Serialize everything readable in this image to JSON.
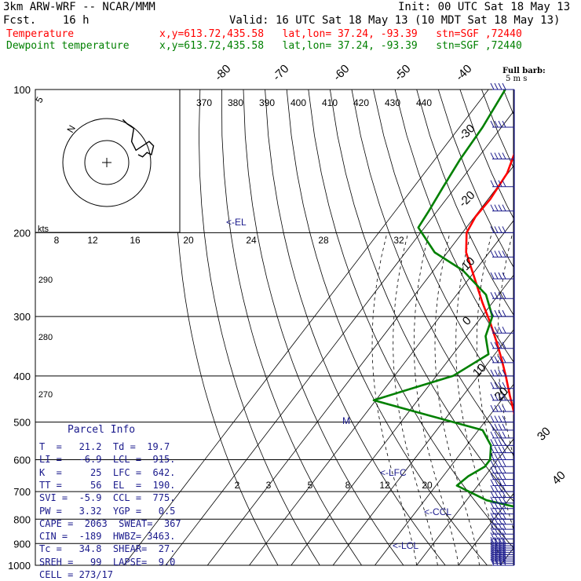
{
  "header": {
    "model": "3km ARW-WRF -- NCAR/MMM",
    "init": "Init: 00 UTC Sat 18 May 13",
    "fcst": "Fcst.    16 h",
    "valid": "Valid: 16 UTC Sat 18 May 13 (10 MDT Sat 18 May 13)",
    "temp_label": "Temperature",
    "temp_loc": "x,y=613.72,435.58   lat,lon= 37.24, -93.39   stn=SGF ,72440",
    "dew_label": "Dewpoint temperature",
    "dew_loc": "x,y=613.72,435.58   lat,lon= 37.24, -93.39   stn=SGF ,72440"
  },
  "wind_note": {
    "line1": "Full barb:",
    "line2": "5 m s"
  },
  "chart_data": {
    "type": "line",
    "diagram": "skew-T log-p",
    "pressure_ticks": [
      100,
      200,
      300,
      400,
      500,
      600,
      700,
      800,
      900,
      1000
    ],
    "pressure_tick_labels": [
      "100",
      "200",
      "300",
      "400",
      "500",
      "600",
      "700",
      "800",
      "900",
      "1000"
    ],
    "temp_ticks": [
      -80,
      -70,
      -60,
      -50,
      -40,
      -30,
      -20,
      -10,
      0,
      10,
      20,
      30,
      40
    ],
    "temp_tick_labels": [
      "-80",
      "-70",
      "-60",
      "-50",
      "-40",
      "-30",
      "-20",
      "-10",
      "0",
      "10",
      "20",
      "30",
      "40"
    ],
    "theta_labels": [
      "370",
      "380",
      "390",
      "400",
      "410",
      "420",
      "430",
      "440"
    ],
    "mixing_ratio_labels": [
      "2",
      "3",
      "5",
      "8",
      "12",
      "20"
    ],
    "other_labels": [
      "290",
      "280",
      "270"
    ],
    "hodograph": {
      "rings": [
        8,
        16
      ],
      "speed_ticks": [
        "8",
        "12",
        "16",
        "20",
        "24",
        "28",
        "32"
      ],
      "units": "kts",
      "ring_labels": [
        "5",
        "N"
      ]
    },
    "levels": {
      "el": "<-EL",
      "lfc": "<-LFC",
      "ccl": "<-CCL",
      "lcl": "<-LCL",
      "mark": "M"
    },
    "series": [
      {
        "name": "Temperature",
        "color": "#ff0000",
        "points": [
          [
            955,
            21.2
          ],
          [
            943,
            20.0
          ],
          [
            930,
            19.0
          ],
          [
            905,
            18.3
          ],
          [
            880,
            16.8
          ],
          [
            850,
            14.6
          ],
          [
            820,
            11.2
          ],
          [
            790,
            9.2
          ],
          [
            760,
            7.3
          ],
          [
            730,
            5.6
          ],
          [
            700,
            3.2
          ],
          [
            670,
            0.7
          ],
          [
            640,
            -1.7
          ],
          [
            600,
            -4.6
          ],
          [
            560,
            -7.8
          ],
          [
            520,
            -10.8
          ],
          [
            500,
            -12.5
          ],
          [
            470,
            -15.5
          ],
          [
            440,
            -18.8
          ],
          [
            400,
            -23.4
          ],
          [
            370,
            -27.3
          ],
          [
            340,
            -31.7
          ],
          [
            310,
            -36.7
          ],
          [
            280,
            -42.5
          ],
          [
            250,
            -48.6
          ],
          [
            220,
            -55.5
          ],
          [
            200,
            -59.0
          ],
          [
            185,
            -59.8
          ],
          [
            170,
            -59.5
          ],
          [
            150,
            -60.2
          ],
          [
            130,
            -63.0
          ],
          [
            115,
            -65.8
          ],
          [
            100,
            -68.2
          ]
        ]
      },
      {
        "name": "Dewpoint temperature",
        "color": "#008000",
        "points": [
          [
            955,
            19.7
          ],
          [
            940,
            19.0
          ],
          [
            920,
            18.2
          ],
          [
            900,
            16.8
          ],
          [
            880,
            14.9
          ],
          [
            860,
            11.8
          ],
          [
            840,
            9.8
          ],
          [
            820,
            8.0
          ],
          [
            790,
            6.4
          ],
          [
            760,
            5.0
          ],
          [
            730,
            -5.2
          ],
          [
            700,
            -11.0
          ],
          [
            680,
            -15.0
          ],
          [
            650,
            -14.0
          ],
          [
            620,
            -11.8
          ],
          [
            600,
            -11.8
          ],
          [
            560,
            -14.2
          ],
          [
            520,
            -19.0
          ],
          [
            480,
            -36.5
          ],
          [
            450,
            -50.5
          ],
          [
            430,
            -45.0
          ],
          [
            400,
            -36.0
          ],
          [
            360,
            -31.5
          ],
          [
            330,
            -35.5
          ],
          [
            300,
            -37.5
          ],
          [
            270,
            -43.0
          ],
          [
            240,
            -53.0
          ],
          [
            220,
            -63.0
          ],
          [
            195,
            -71.5
          ],
          [
            180,
            -72.0
          ],
          [
            160,
            -73.0
          ],
          [
            140,
            -74.0
          ],
          [
            120,
            -74.5
          ],
          [
            100,
            -76.0
          ]
        ]
      }
    ],
    "hodograph_trace": [
      [
        0,
        0
      ],
      [
        4,
        -1
      ],
      [
        8,
        1
      ],
      [
        12,
        0
      ],
      [
        14,
        4
      ],
      [
        10,
        6
      ],
      [
        4,
        4
      ],
      [
        -2,
        2
      ],
      [
        -6,
        6
      ],
      [
        -4,
        12
      ],
      [
        -10,
        14
      ],
      [
        -14,
        16
      ]
    ],
    "wind_levels": [
      1000,
      990,
      980,
      970,
      960,
      950,
      940,
      930,
      920,
      910,
      900,
      880,
      860,
      840,
      820,
      800,
      780,
      760,
      740,
      720,
      700,
      680,
      660,
      640,
      620,
      600,
      580,
      560,
      540,
      520,
      500,
      475,
      450,
      425,
      400,
      375,
      350,
      325,
      300,
      275,
      250,
      225,
      200,
      180,
      160,
      140,
      120,
      100
    ]
  },
  "parcel_info": {
    "title": "Parcel Info",
    "rows": [
      "T  =   21.2  Td =  19.7",
      "LI =   -6.9  LCL =  915.",
      "K  =     25  LFC =  642.",
      "TT =     56  EL  =  190.",
      "SVI =  -5.9  CCL =  775.",
      "PW =   3.32  YGP =   0.5",
      "CAPE =  2063  SWEAT=  367",
      "CIN =  -189  HWBZ= 3463.",
      "Tc =   34.8  SHEAR=  27.",
      "SREH =   99  LAPSE=  9.0",
      "CELL = 273/17"
    ]
  }
}
